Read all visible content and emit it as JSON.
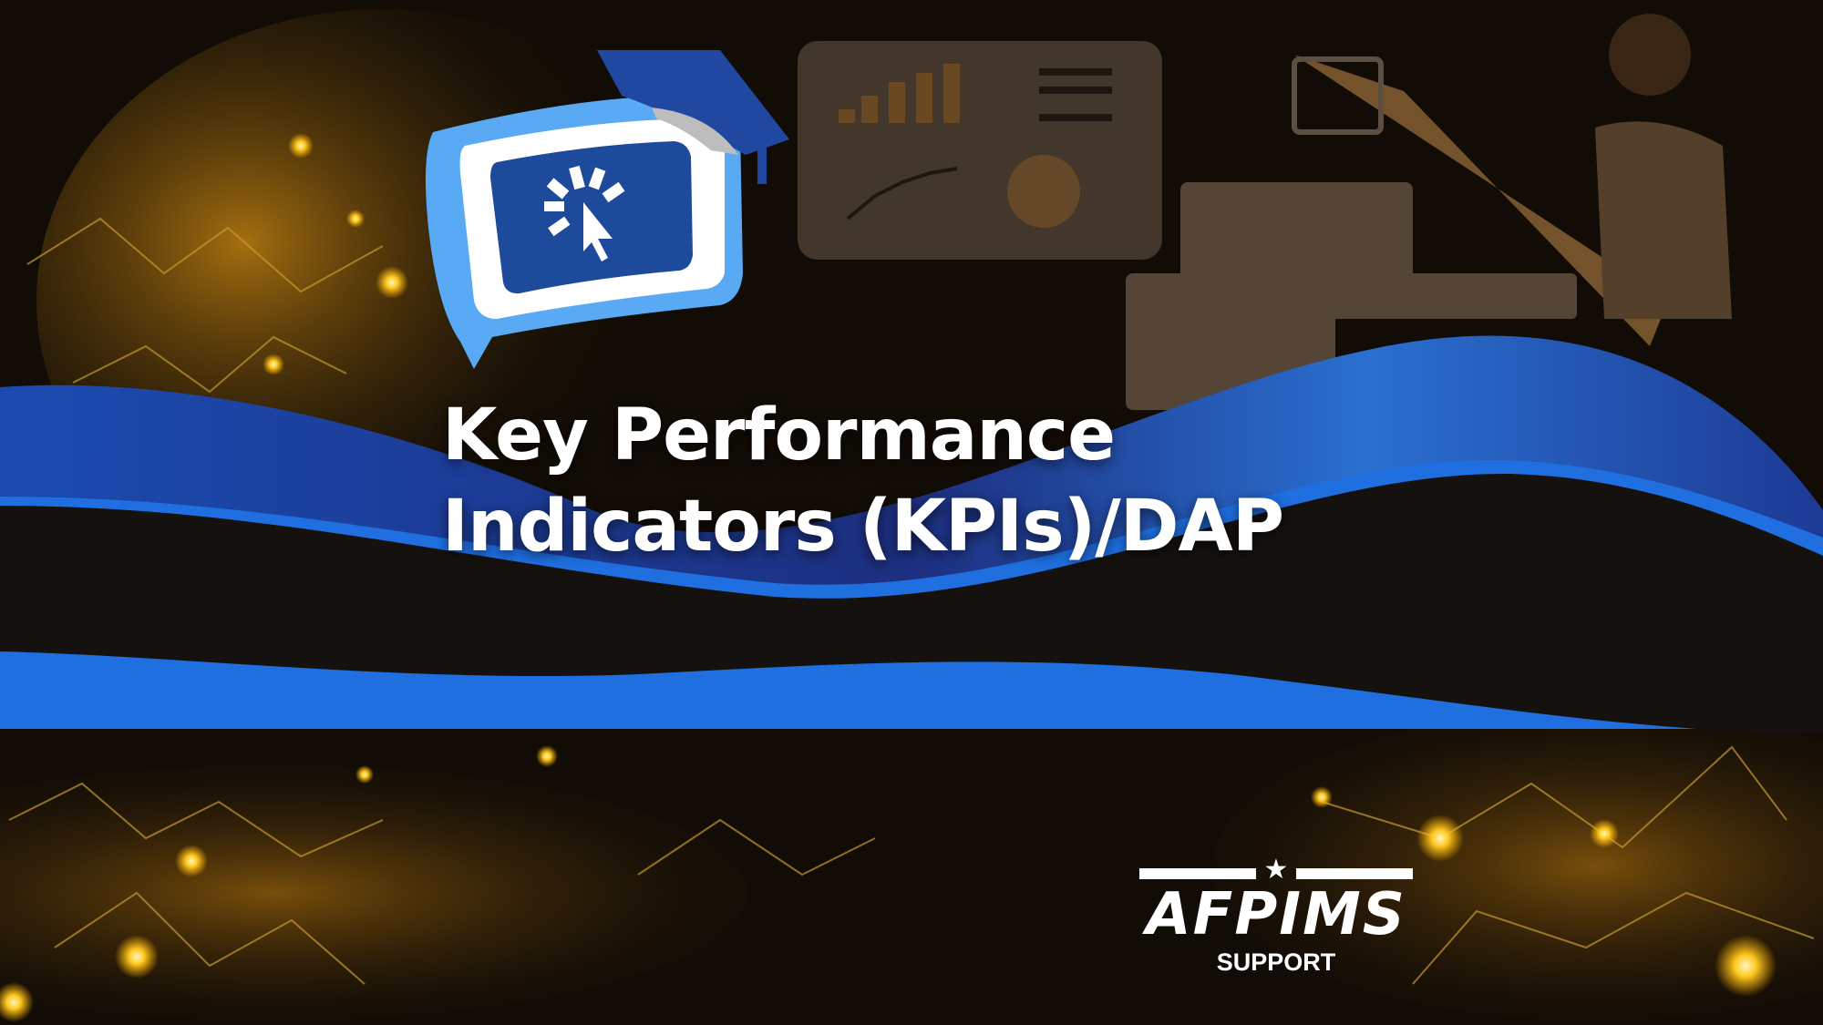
{
  "slide": {
    "title_line1": "Key Performance",
    "title_line2": "Indicators (KPIs)/DAP"
  },
  "logo": {
    "wordmark": "AFPIMS",
    "subtitle": "SUPPORT"
  },
  "colors": {
    "background": "#120c06",
    "gold_glow": "#f5b400",
    "wave_blue": "#1f3f9a",
    "wave_highlight": "#1f6fe0",
    "badge_light_blue": "#5aa9f5",
    "badge_dark_blue": "#1e4a9c"
  },
  "icons": [
    "graduation-cap-icon",
    "click-cursor-icon",
    "star-icon"
  ]
}
